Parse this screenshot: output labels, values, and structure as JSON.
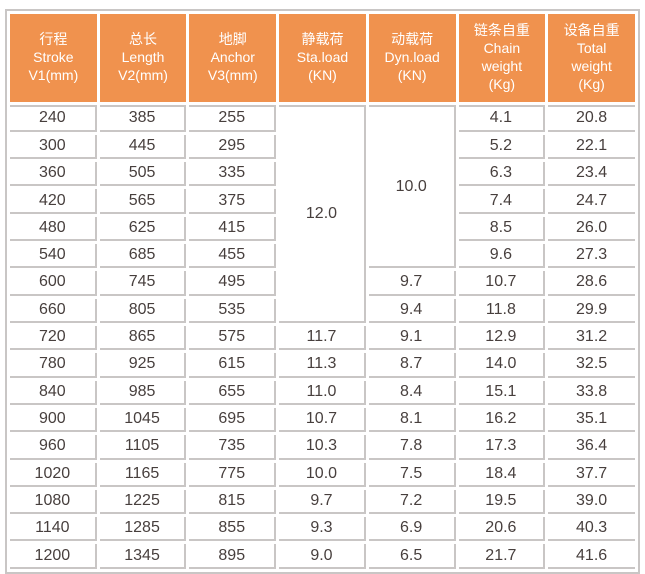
{
  "colors": {
    "header_bg": "#f0924e",
    "header_text": "#ffffff",
    "grid_line": "#c9c6c5",
    "cell_bg": "#ffffff",
    "cell_text": "#473f3d"
  },
  "table": {
    "columns": [
      {
        "id": "stroke",
        "lines": [
          "行程",
          "Stroke",
          "V1(mm)"
        ]
      },
      {
        "id": "length",
        "lines": [
          "总长",
          "Length",
          "V2(mm)"
        ]
      },
      {
        "id": "anchor",
        "lines": [
          "地脚",
          "Anchor",
          "V3(mm)"
        ]
      },
      {
        "id": "sta-load",
        "lines": [
          "静载荷",
          "Sta.load",
          "(KN)"
        ]
      },
      {
        "id": "dyn-load",
        "lines": [
          "动载荷",
          "Dyn.load",
          "(KN)"
        ]
      },
      {
        "id": "chain-weight",
        "lines": [
          "链条自重",
          "Chain",
          "weight",
          "(Kg)"
        ]
      },
      {
        "id": "total-weight",
        "lines": [
          "设备自重",
          "Total",
          "weight",
          "(Kg)"
        ]
      }
    ],
    "rows": [
      [
        "240",
        "385",
        "255",
        {
          "v": "12.0",
          "rowspan": 8
        },
        {
          "v": "10.0",
          "rowspan": 6
        },
        "4.1",
        "20.8"
      ],
      [
        "300",
        "445",
        "295",
        null,
        null,
        "5.2",
        "22.1"
      ],
      [
        "360",
        "505",
        "335",
        null,
        null,
        "6.3",
        "23.4"
      ],
      [
        "420",
        "565",
        "375",
        null,
        null,
        "7.4",
        "24.7"
      ],
      [
        "480",
        "625",
        "415",
        null,
        null,
        "8.5",
        "26.0"
      ],
      [
        "540",
        "685",
        "455",
        null,
        null,
        "9.6",
        "27.3"
      ],
      [
        "600",
        "745",
        "495",
        null,
        "9.7",
        "10.7",
        "28.6"
      ],
      [
        "660",
        "805",
        "535",
        null,
        "9.4",
        "11.8",
        "29.9"
      ],
      [
        "720",
        "865",
        "575",
        "11.7",
        "9.1",
        "12.9",
        "31.2"
      ],
      [
        "780",
        "925",
        "615",
        "11.3",
        "8.7",
        "14.0",
        "32.5"
      ],
      [
        "840",
        "985",
        "655",
        "11.0",
        "8.4",
        "15.1",
        "33.8"
      ],
      [
        "900",
        "1045",
        "695",
        "10.7",
        "8.1",
        "16.2",
        "35.1"
      ],
      [
        "960",
        "1105",
        "735",
        "10.3",
        "7.8",
        "17.3",
        "36.4"
      ],
      [
        "1020",
        "1165",
        "775",
        "10.0",
        "7.5",
        "18.4",
        "37.7"
      ],
      [
        "1080",
        "1225",
        "815",
        "9.7",
        "7.2",
        "19.5",
        "39.0"
      ],
      [
        "1140",
        "1285",
        "855",
        "9.3",
        "6.9",
        "20.6",
        "40.3"
      ],
      [
        "1200",
        "1345",
        "895",
        "9.0",
        "6.5",
        "21.7",
        "41.6"
      ]
    ]
  }
}
